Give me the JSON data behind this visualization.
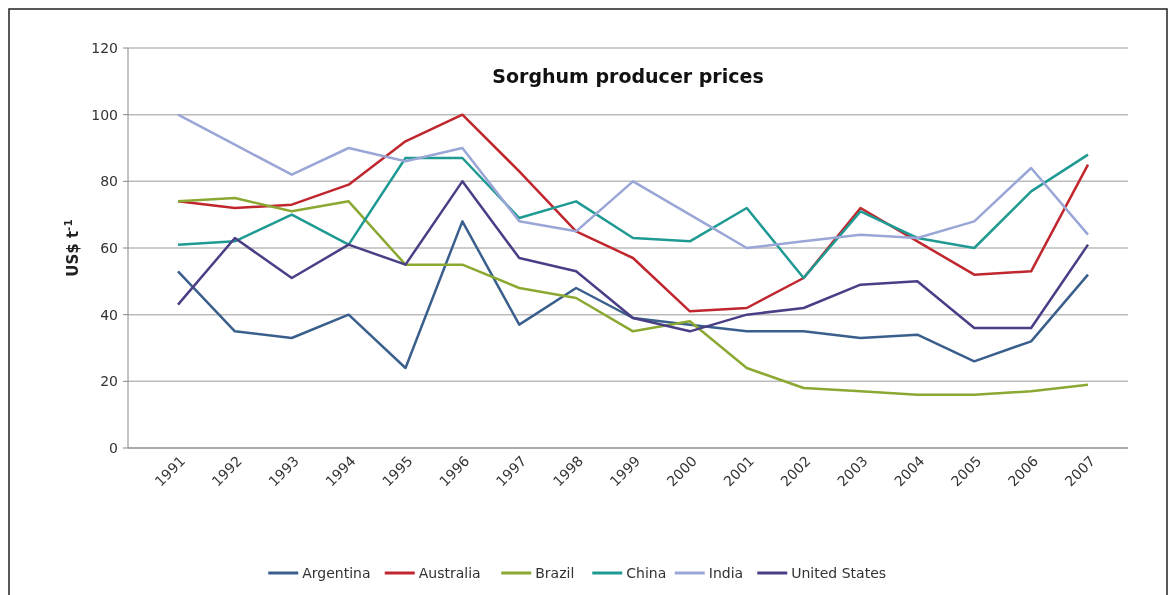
{
  "chart_data": {
    "type": "line",
    "title": "Sorghum producer prices",
    "ylabel": "US$ t$^{-1}$",
    "categories": [
      "1991",
      "1992",
      "1993",
      "1994",
      "1995",
      "1996",
      "1997",
      "1998",
      "1999",
      "2000",
      "2001",
      "2002",
      "2003",
      "2004",
      "2005",
      "2006",
      "2007"
    ],
    "series": [
      {
        "name": "Argentina",
        "color": "#3a5f8c",
        "values": [
          53,
          35,
          33,
          40,
          24,
          68,
          37,
          48,
          39,
          37,
          35,
          35,
          33,
          34,
          26,
          32,
          52
        ]
      },
      {
        "name": "Australia",
        "color": "#c0262d",
        "values": [
          74,
          72,
          73,
          79,
          92,
          100,
          83,
          65,
          57,
          41,
          42,
          51,
          72,
          62,
          52,
          53,
          85
        ]
      },
      {
        "name": "Brazil",
        "color": "#8aa832",
        "values": [
          74,
          75,
          71,
          74,
          55,
          55,
          48,
          45,
          35,
          38,
          24,
          18,
          17,
          16,
          16,
          17,
          19
        ]
      },
      {
        "name": "China",
        "color": "#1f9a92",
        "values": [
          61,
          62,
          70,
          61,
          87,
          87,
          69,
          74,
          63,
          62,
          72,
          51,
          71,
          63,
          60,
          77,
          88
        ]
      },
      {
        "name": "India",
        "color": "#9aa6d6",
        "values": [
          100,
          91,
          82,
          90,
          86,
          90,
          68,
          65,
          80,
          70,
          60,
          62,
          64,
          63,
          68,
          84,
          64
        ]
      },
      {
        "name": "United States",
        "color": "#4a3f86",
        "values": [
          43,
          63,
          51,
          61,
          55,
          80,
          57,
          53,
          39,
          35,
          40,
          42,
          49,
          50,
          36,
          36,
          61
        ]
      }
    ],
    "ylim": [
      0,
      120
    ],
    "yticks": [
      0,
      20,
      40,
      60,
      80,
      100,
      120
    ],
    "grid": "y",
    "legend": "bottom",
    "marker": "none",
    "line_style": "solid"
  }
}
